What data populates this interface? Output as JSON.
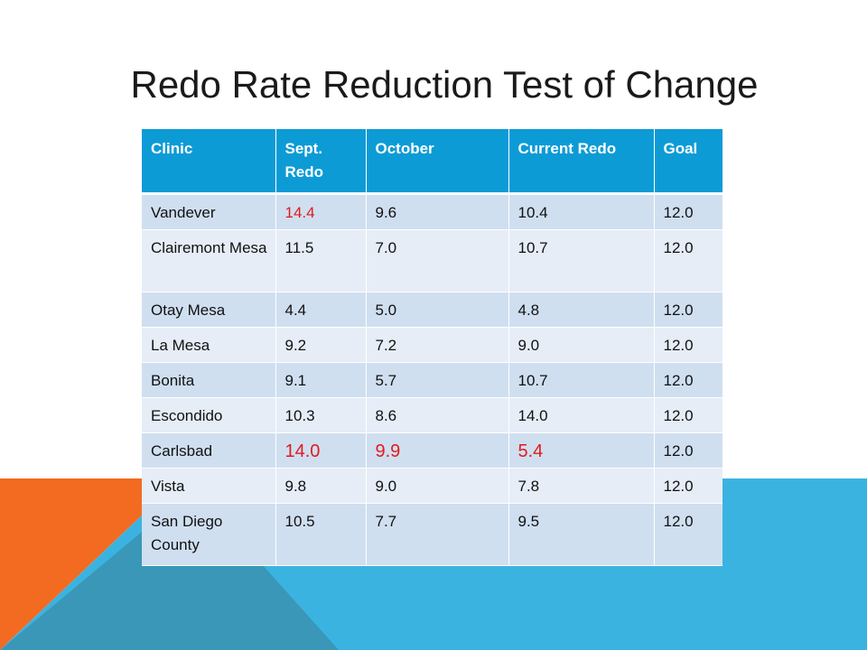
{
  "slide": {
    "title": "Redo Rate Reduction Test of Change"
  },
  "colors": {
    "header_bg": "#0d9bd6",
    "row_odd_bg": "#cfdff0",
    "row_even_bg": "#e6edf7",
    "highlight_text": "#e01b1b",
    "accent_orange": "#f26b21",
    "accent_blue": "#3bb3e0",
    "accent_teal": "#3a97b8"
  },
  "table": {
    "headers": [
      "Clinic",
      "Sept. Redo",
      "October",
      "Current Redo",
      "Goal"
    ],
    "rows": [
      {
        "clinic": "Vandever",
        "sept": "14.4",
        "october": "9.6",
        "current": "10.4",
        "goal": "12.0"
      },
      {
        "clinic": "Clairemont Mesa",
        "sept": "11.5",
        "october": "7.0",
        "current": "10.7",
        "goal": "12.0"
      },
      {
        "clinic": "Otay Mesa",
        "sept": "4.4",
        "october": "5.0",
        "current": "4.8",
        "goal": "12.0"
      },
      {
        "clinic": "La Mesa",
        "sept": "9.2",
        "october": "7.2",
        "current": "9.0",
        "goal": "12.0"
      },
      {
        "clinic": "Bonita",
        "sept": "9.1",
        "october": "5.7",
        "current": "10.7",
        "goal": "12.0"
      },
      {
        "clinic": "Escondido",
        "sept": "10.3",
        "october": "8.6",
        "current": "14.0",
        "goal": "12.0"
      },
      {
        "clinic": "Carlsbad",
        "sept": "14.0",
        "october": "9.9",
        "current": "5.4",
        "goal": "12.0"
      },
      {
        "clinic": "Vista",
        "sept": "9.8",
        "october": "9.0",
        "current": "7.8",
        "goal": "12.0"
      },
      {
        "clinic": "San Diego County",
        "sept": "10.5",
        "october": "7.7",
        "current": "9.5",
        "goal": "12.0"
      }
    ]
  }
}
